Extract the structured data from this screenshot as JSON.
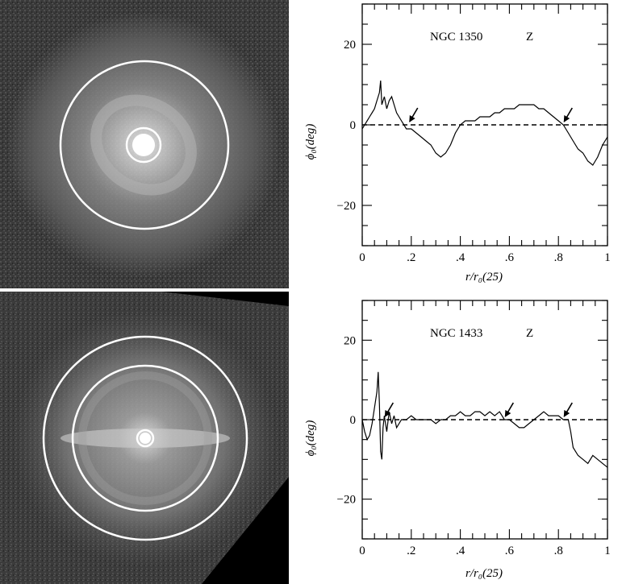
{
  "panels": [
    {
      "label": "NGC 1350",
      "band": "Z",
      "ylabel": "ϕ₀(deg)",
      "xlabel": "r/r₀(25)",
      "x_tick_labels": [
        "0",
        ".2",
        ".4",
        ".6",
        ".8",
        "1"
      ],
      "y_tick_labels": [
        "20",
        "0",
        "−20"
      ]
    },
    {
      "label": "NGC 1433",
      "band": "Z",
      "ylabel": "ϕ₀(deg)",
      "xlabel": "r/r₀(25)",
      "x_tick_labels": [
        "0",
        ".2",
        ".4",
        ".6",
        ".8",
        "1"
      ],
      "y_tick_labels": [
        "20",
        "0",
        "−20"
      ]
    }
  ],
  "chart_data": [
    {
      "type": "line",
      "title": "NGC 1350 Z",
      "xlabel": "r/r₀(25)",
      "ylabel": "ϕ₀(deg)",
      "xlim": [
        0,
        1
      ],
      "ylim": [
        -30,
        30
      ],
      "reference_line_y": 0,
      "arrow_markers_x": [
        0.19,
        0.82
      ],
      "x": [
        0,
        0.01,
        0.02,
        0.03,
        0.04,
        0.05,
        0.06,
        0.07,
        0.075,
        0.08,
        0.09,
        0.1,
        0.11,
        0.12,
        0.13,
        0.14,
        0.15,
        0.16,
        0.17,
        0.18,
        0.19,
        0.2,
        0.22,
        0.24,
        0.26,
        0.28,
        0.3,
        0.32,
        0.34,
        0.36,
        0.38,
        0.4,
        0.42,
        0.44,
        0.46,
        0.48,
        0.5,
        0.52,
        0.54,
        0.56,
        0.58,
        0.6,
        0.62,
        0.64,
        0.66,
        0.68,
        0.7,
        0.72,
        0.74,
        0.76,
        0.78,
        0.8,
        0.82,
        0.84,
        0.86,
        0.88,
        0.9,
        0.92,
        0.94,
        0.96,
        0.98,
        1.0
      ],
      "values": [
        -1,
        0,
        1,
        2,
        3,
        4,
        6,
        8,
        11,
        5,
        7,
        4,
        6,
        7,
        5,
        3,
        2,
        1,
        0,
        -1,
        -1,
        -1,
        -2,
        -3,
        -4,
        -5,
        -7,
        -8,
        -7,
        -5,
        -2,
        0,
        1,
        1,
        1,
        2,
        2,
        2,
        3,
        3,
        4,
        4,
        4,
        5,
        5,
        5,
        5,
        4,
        4,
        3,
        2,
        1,
        0,
        -2,
        -4,
        -6,
        -7,
        -9,
        -10,
        -8,
        -5,
        -3
      ]
    },
    {
      "type": "line",
      "title": "NGC 1433 Z",
      "xlabel": "r/r₀(25)",
      "ylabel": "ϕ₀(deg)",
      "xlim": [
        0,
        1
      ],
      "ylim": [
        -30,
        30
      ],
      "reference_line_y": 0,
      "arrow_markers_x": [
        0.09,
        0.58,
        0.82
      ],
      "x": [
        0,
        0.01,
        0.02,
        0.03,
        0.04,
        0.05,
        0.06,
        0.065,
        0.07,
        0.075,
        0.08,
        0.085,
        0.09,
        0.1,
        0.11,
        0.12,
        0.13,
        0.14,
        0.16,
        0.18,
        0.2,
        0.22,
        0.24,
        0.26,
        0.28,
        0.3,
        0.32,
        0.34,
        0.36,
        0.38,
        0.4,
        0.42,
        0.44,
        0.46,
        0.48,
        0.5,
        0.52,
        0.54,
        0.56,
        0.58,
        0.6,
        0.62,
        0.64,
        0.66,
        0.68,
        0.7,
        0.72,
        0.74,
        0.76,
        0.78,
        0.8,
        0.82,
        0.84,
        0.85,
        0.86,
        0.88,
        0.9,
        0.92,
        0.94,
        0.96,
        0.98,
        1.0
      ],
      "values": [
        0,
        -3,
        -5,
        -4,
        -1,
        3,
        7,
        12,
        4,
        -8,
        -10,
        -2,
        1,
        -3,
        2,
        -1,
        1,
        -2,
        0,
        0,
        1,
        0,
        0,
        0,
        0,
        -1,
        0,
        0,
        1,
        1,
        2,
        1,
        1,
        2,
        2,
        1,
        2,
        1,
        2,
        0,
        0,
        -1,
        -2,
        -2,
        -1,
        0,
        1,
        2,
        1,
        1,
        1,
        0,
        0,
        -3,
        -7,
        -9,
        -10,
        -11,
        -9,
        -10,
        -11,
        -12
      ]
    }
  ]
}
